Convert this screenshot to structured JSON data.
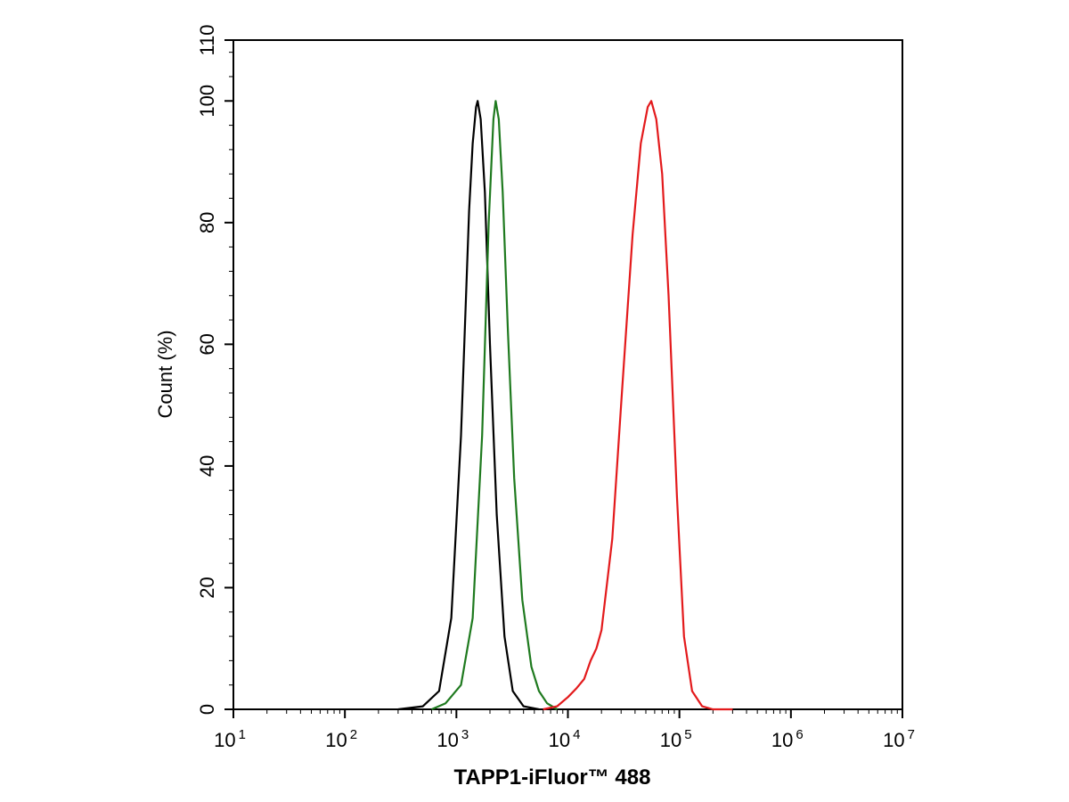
{
  "chart_data": {
    "type": "line",
    "title": "",
    "xlabel": "TAPP1-iFluor™ 488",
    "ylabel": "Count  (%)",
    "x_scale": "log",
    "xlim": [
      10,
      10000000
    ],
    "ylim": [
      0,
      110
    ],
    "grid": false,
    "x_ticks": [
      {
        "base": "10",
        "exp": "1"
      },
      {
        "base": "10",
        "exp": "2"
      },
      {
        "base": "10",
        "exp": "3"
      },
      {
        "base": "10",
        "exp": "4"
      },
      {
        "base": "10",
        "exp": "5"
      },
      {
        "base": "10",
        "exp": "6"
      },
      {
        "base": "10",
        "exp": "7"
      }
    ],
    "y_ticks": [
      "0",
      "20",
      "40",
      "60",
      "80",
      "100",
      "110"
    ],
    "y_tick_values": [
      0,
      20,
      40,
      60,
      80,
      100,
      110
    ],
    "series": [
      {
        "color": "#000000",
        "points": [
          [
            300,
            0
          ],
          [
            500,
            0.5
          ],
          [
            700,
            3
          ],
          [
            900,
            15
          ],
          [
            1100,
            45
          ],
          [
            1300,
            82
          ],
          [
            1400,
            93
          ],
          [
            1500,
            99
          ],
          [
            1550,
            100
          ],
          [
            1650,
            97
          ],
          [
            1800,
            85
          ],
          [
            2000,
            60
          ],
          [
            2300,
            32
          ],
          [
            2700,
            12
          ],
          [
            3200,
            3
          ],
          [
            4000,
            0.5
          ],
          [
            5500,
            0
          ]
        ]
      },
      {
        "color": "#1f7a1f",
        "points": [
          [
            600,
            0
          ],
          [
            800,
            1
          ],
          [
            1100,
            4
          ],
          [
            1400,
            15
          ],
          [
            1700,
            45
          ],
          [
            1950,
            80
          ],
          [
            2150,
            97
          ],
          [
            2250,
            100
          ],
          [
            2400,
            97
          ],
          [
            2600,
            85
          ],
          [
            2900,
            62
          ],
          [
            3300,
            38
          ],
          [
            3900,
            18
          ],
          [
            4700,
            7
          ],
          [
            5500,
            3
          ],
          [
            6500,
            1
          ],
          [
            8000,
            0
          ]
        ]
      },
      {
        "color": "#e31a1c",
        "points": [
          [
            6000,
            0
          ],
          [
            8000,
            0.5
          ],
          [
            10000,
            2
          ],
          [
            12000,
            3.5
          ],
          [
            14000,
            5
          ],
          [
            16000,
            8
          ],
          [
            18000,
            10
          ],
          [
            20000,
            13
          ],
          [
            25000,
            28
          ],
          [
            30000,
            50
          ],
          [
            38000,
            78
          ],
          [
            45000,
            93
          ],
          [
            52000,
            99
          ],
          [
            56000,
            100
          ],
          [
            62000,
            97
          ],
          [
            70000,
            88
          ],
          [
            80000,
            68
          ],
          [
            95000,
            35
          ],
          [
            110000,
            12
          ],
          [
            130000,
            3
          ],
          [
            160000,
            0.5
          ],
          [
            200000,
            0
          ],
          [
            300000,
            0
          ]
        ]
      }
    ]
  }
}
